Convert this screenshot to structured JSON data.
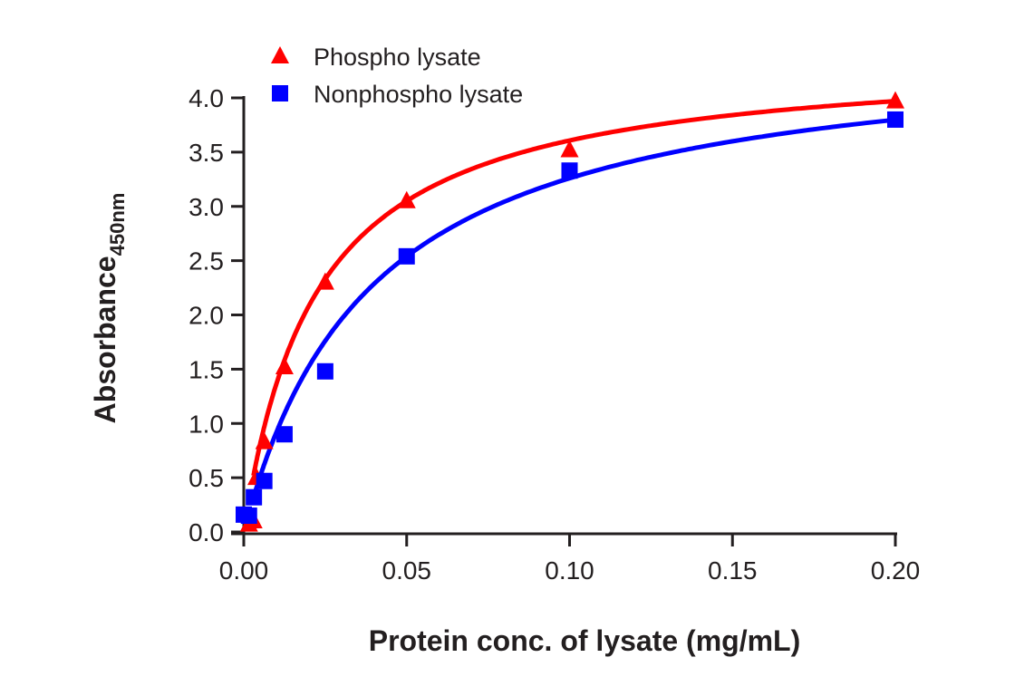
{
  "chart_data": {
    "type": "scatter",
    "title": "",
    "xlabel": "Protein conc. of lysate (mg/mL)",
    "ylabel": "Absorbance",
    "ylabel_subscript": "450nm",
    "xlim": [
      0,
      0.2
    ],
    "ylim": [
      0,
      4.0
    ],
    "xticks": [
      "0.00",
      "0.05",
      "0.10",
      "0.15",
      "0.20"
    ],
    "yticks": [
      "0.0",
      "0.5",
      "1.0",
      "1.5",
      "2.0",
      "2.5",
      "3.0",
      "3.5",
      "4.0"
    ],
    "grid": false,
    "legend_position": "top-left",
    "series": [
      {
        "name": "Phospho lysate",
        "color": "#ff0000",
        "marker": "triangle",
        "x": [
          0.0016,
          0.003,
          0.0039,
          0.0063,
          0.0125,
          0.025,
          0.05,
          0.1,
          0.2
        ],
        "y": [
          0.07,
          0.1,
          0.5,
          0.83,
          1.52,
          2.3,
          3.05,
          3.52,
          3.97
        ],
        "fit": {
          "model": "hyperbolic",
          "a": 4.414,
          "k": 0.02236
        }
      },
      {
        "name": "Nonphospho lysate",
        "color": "#0000ff",
        "marker": "square",
        "x": [
          0,
          0.0016,
          0.0031,
          0.0063,
          0.0125,
          0.025,
          0.05,
          0.1,
          0.2
        ],
        "y": [
          0.16,
          0.15,
          0.32,
          0.47,
          0.9,
          1.48,
          2.54,
          3.33,
          3.8
        ],
        "fit": {
          "model": "hyperbolic",
          "a": 4.55,
          "k": 0.0396
        }
      }
    ]
  }
}
